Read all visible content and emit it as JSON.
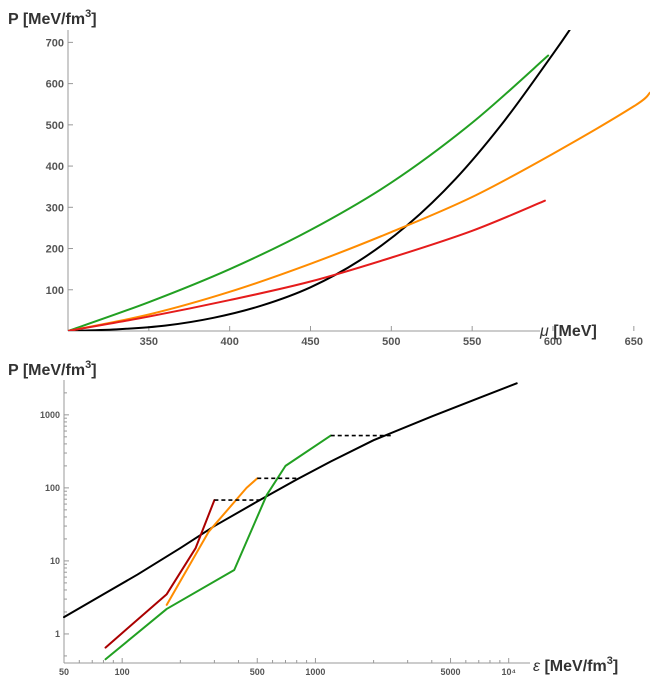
{
  "chart_data": [
    {
      "type": "line",
      "ylabel": "P [MeV/fm",
      "ylabel_sup": "3",
      "ylabel_tail": "]",
      "xlabel_symbol": "μ",
      "xlabel": " [MeV]",
      "xlim": [
        300,
        660
      ],
      "ylim": [
        0,
        730
      ],
      "x_ticks": [
        350,
        400,
        450,
        500,
        550,
        600,
        650
      ],
      "y_ticks": [
        100,
        200,
        300,
        400,
        500,
        600,
        700
      ],
      "series": [
        {
          "color": "#000000",
          "x": [
            300,
            330,
            360,
            390,
            420,
            450,
            480,
            510,
            540,
            570,
            600,
            612
          ],
          "y": [
            0,
            4,
            13,
            32,
            62,
            106,
            170,
            257,
            370,
            510,
            672,
            740
          ]
        },
        {
          "color": "#22a022",
          "x": [
            300,
            350,
            400,
            450,
            500,
            550,
            597
          ],
          "y": [
            0,
            70,
            150,
            245,
            360,
            505,
            668
          ]
        },
        {
          "color": "#ff8c00",
          "x": [
            300,
            350,
            400,
            450,
            500,
            550,
            600,
            650,
            660
          ],
          "y": [
            0,
            40,
            95,
            163,
            240,
            325,
            430,
            545,
            578
          ]
        },
        {
          "color": "#e51c1c",
          "x": [
            300,
            350,
            400,
            450,
            500,
            550,
            595
          ],
          "y": [
            0,
            35,
            75,
            120,
            178,
            243,
            316
          ]
        }
      ]
    },
    {
      "type": "line",
      "ylabel": "P [MeV/fm",
      "ylabel_sup": "3",
      "ylabel_tail": "]",
      "xlabel_symbol": "ε",
      "xlabel": " [MeV/fm",
      "xlabel_sup": "3",
      "xlabel_tail": "]",
      "x_scale": "log",
      "y_scale": "log",
      "xlim": [
        50,
        12000
      ],
      "ylim": [
        0.4,
        3000
      ],
      "x_ticks": [
        {
          "v": 50,
          "t": "50"
        },
        {
          "v": 100,
          "t": "100"
        },
        {
          "v": 500,
          "t": "500"
        },
        {
          "v": 1000,
          "t": "1000"
        },
        {
          "v": 5000,
          "t": "5000"
        },
        {
          "v": 10000,
          "t": "10⁴"
        }
      ],
      "y_ticks": [
        {
          "v": 1,
          "t": "1"
        },
        {
          "v": 10,
          "t": "10"
        },
        {
          "v": 100,
          "t": "100"
        },
        {
          "v": 1000,
          "t": "1000"
        }
      ],
      "series": [
        {
          "color": "#000000",
          "x": [
            50,
            80,
            120,
            200,
            300,
            500,
            800,
            1200,
            2000,
            4000,
            7000,
            11000
          ],
          "y": [
            1.7,
            3.5,
            6.5,
            15,
            30,
            65,
            130,
            230,
            450,
            950,
            1700,
            2700
          ]
        },
        {
          "color": "#aa0000",
          "x": [
            82,
            170,
            240,
            300
          ],
          "y": [
            0.65,
            3.5,
            15,
            68
          ]
        },
        {
          "color": "#ff8c00",
          "x": [
            170,
            280,
            440,
            500
          ],
          "y": [
            2.5,
            25,
            100,
            135
          ]
        },
        {
          "color": "#22a022",
          "x": [
            82,
            170,
            380,
            560,
            700,
            1200
          ],
          "y": [
            0.45,
            2.2,
            7.5,
            80,
            200,
            520
          ]
        }
      ],
      "transitions": [
        {
          "x": [
            300,
            520
          ],
          "y": 68
        },
        {
          "x": [
            500,
            820
          ],
          "y": 135
        },
        {
          "x": [
            1200,
            2500
          ],
          "y": 520
        }
      ]
    }
  ]
}
